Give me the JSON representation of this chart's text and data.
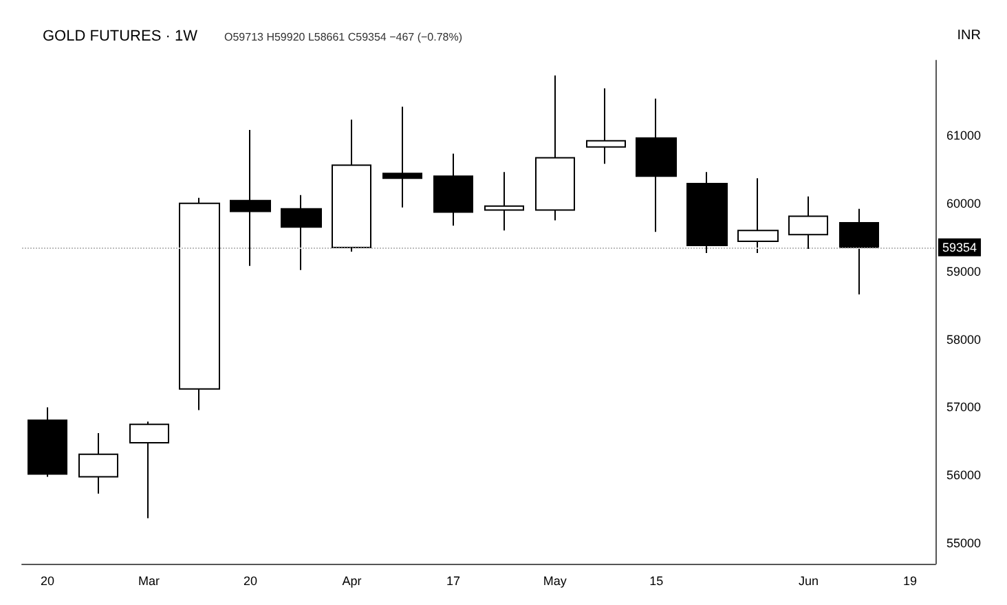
{
  "chart_data": {
    "type": "candlestick",
    "title": "GOLD FUTURES · 1W",
    "subtitle": "O59713 H59920 L58661 C59354 −467 (−0.78%)",
    "ylabel": "INR",
    "categories": [
      "20",
      null,
      "Mar",
      null,
      "20",
      null,
      "Apr",
      null,
      "17",
      null,
      "May",
      null,
      "15",
      null,
      null,
      "Jun",
      null,
      "19"
    ],
    "ohlc": [
      [
        56810,
        57000,
        55980,
        56020
      ],
      [
        55980,
        56620,
        55730,
        56310
      ],
      [
        56480,
        56790,
        55370,
        56750
      ],
      [
        57270,
        60080,
        56960,
        60000
      ],
      [
        60040,
        61080,
        59080,
        59880
      ],
      [
        59920,
        60120,
        59020,
        59650
      ],
      [
        59350,
        61230,
        59290,
        60560
      ],
      [
        60440,
        61420,
        59940,
        60370
      ],
      [
        60400,
        60730,
        59670,
        59870
      ],
      [
        59900,
        60460,
        59600,
        59960
      ],
      [
        59900,
        61880,
        59750,
        60670
      ],
      [
        60830,
        61690,
        60580,
        60920
      ],
      [
        60960,
        61540,
        59580,
        60400
      ],
      [
        60290,
        60460,
        59270,
        59380
      ],
      [
        59440,
        60370,
        59270,
        59600
      ],
      [
        59540,
        60100,
        59330,
        59810
      ],
      [
        59713,
        59920,
        58661,
        59354
      ],
      null
    ],
    "color": "#000000",
    "ylim": [
      54700,
      62100
    ],
    "yticks": [
      55000,
      56000,
      57000,
      58000,
      59000,
      60000,
      61000
    ],
    "ref_lines": [
      {
        "axis": "y",
        "value": 59354,
        "label": "59354"
      }
    ],
    "grid": false
  }
}
